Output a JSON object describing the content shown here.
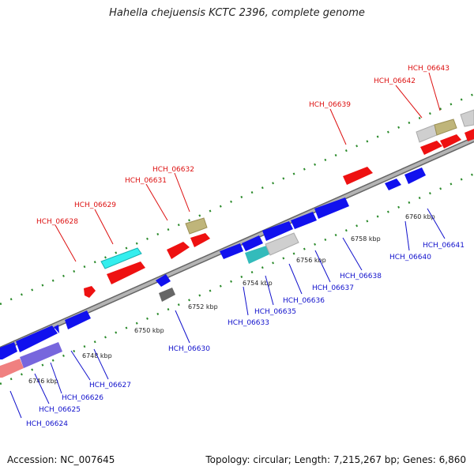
{
  "title": "Hahella chejuensis KCTC 2396, complete genome",
  "footer": {
    "accession": "Accession: NC_007645",
    "topology": "Topology: circular; Length: 7,215,267 bp; Genes: 6,860"
  },
  "colors": {
    "forward_label": "#dd1111",
    "reverse_label": "#1111cc",
    "tick": "#2a8a2a",
    "backbone": "#8c8c8c"
  },
  "scale_labels": [
    "6746 kbp",
    "6748 kbp",
    "6750 kbp",
    "6752 kbp",
    "6754 kbp",
    "6756 kbp",
    "6758 kbp",
    "6760 kbp"
  ],
  "genes_forward": [
    {
      "id": "HCH_06628"
    },
    {
      "id": "HCH_06629"
    },
    {
      "id": "HCH_06631"
    },
    {
      "id": "HCH_06632"
    },
    {
      "id": "HCH_06639"
    },
    {
      "id": "HCH_06642"
    },
    {
      "id": "HCH_06643"
    }
  ],
  "genes_reverse": [
    {
      "id": "HCH_06624"
    },
    {
      "id": "HCH_06625"
    },
    {
      "id": "HCH_06626"
    },
    {
      "id": "HCH_06627"
    },
    {
      "id": "HCH_06630"
    },
    {
      "id": "HCH_06633"
    },
    {
      "id": "HCH_06635"
    },
    {
      "id": "HCH_06636"
    },
    {
      "id": "HCH_06637"
    },
    {
      "id": "HCH_06638"
    },
    {
      "id": "HCH_06640"
    },
    {
      "id": "HCH_06641"
    }
  ]
}
